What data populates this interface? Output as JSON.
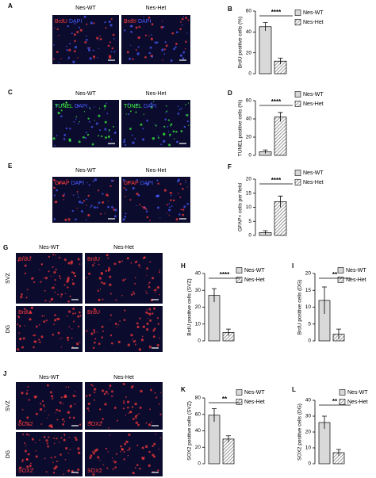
{
  "panels": [
    {
      "letter": "A",
      "columns": [
        "Nes-WT",
        "Nes-Het"
      ],
      "stains": [
        "BrdU",
        "DAPI"
      ],
      "stain_colors": [
        "#ff3b3b",
        "#4a5cff"
      ]
    },
    {
      "letter": "C",
      "columns": [
        "Nes-WT",
        "Nes-Het"
      ],
      "stains": [
        "TUNEL",
        "DAPI"
      ],
      "stain_colors": [
        "#3cff3c",
        "#4a5cff"
      ]
    },
    {
      "letter": "E",
      "columns": [
        "Nes-WT",
        "Nes-Het"
      ],
      "stains": [
        "GFAP",
        "DAPI"
      ],
      "stain_colors": [
        "#ff3b3b",
        "#4a5cff"
      ]
    },
    {
      "letter": "G",
      "columns": [
        "Nes-WT",
        "Nes-Het"
      ],
      "rows": [
        "SVZ",
        "DG"
      ],
      "stains": [
        "BrdU"
      ],
      "stain_colors": [
        "#ff3b3b"
      ]
    },
    {
      "letter": "J",
      "columns": [
        "Nes-WT",
        "Nes-Het"
      ],
      "rows": [
        "SVZ",
        "DG"
      ],
      "stains": [
        "SOX2"
      ],
      "stain_colors": [
        "#ff3b3b"
      ]
    }
  ],
  "chart_data": [
    {
      "type": "bar",
      "letter": "B",
      "ylabel": "BrdU positive cells (%)",
      "ylim": [
        0,
        60
      ],
      "yticks": [
        0,
        20,
        40,
        60
      ],
      "annotation": "****",
      "series": [
        {
          "name": "Nes-WT",
          "color": "#d9d9d9",
          "values": [
            45
          ],
          "errors": [
            4
          ]
        },
        {
          "name": "Nes-Het",
          "color": "#7f7f7f",
          "hatch": true,
          "values": [
            12
          ],
          "errors": [
            3
          ]
        }
      ]
    },
    {
      "type": "bar",
      "letter": "D",
      "ylabel": "TUNEL positive cells (%)",
      "ylim": [
        0,
        60
      ],
      "yticks": [
        0,
        20,
        40,
        60
      ],
      "annotation": "****",
      "series": [
        {
          "name": "Nes-WT",
          "color": "#d9d9d9",
          "values": [
            4
          ],
          "errors": [
            2
          ]
        },
        {
          "name": "Nes-Het",
          "color": "#7f7f7f",
          "hatch": true,
          "values": [
            42
          ],
          "errors": [
            5
          ]
        }
      ]
    },
    {
      "type": "bar",
      "letter": "F",
      "ylabel": "GFAP+ cells per field",
      "ylim": [
        0,
        20
      ],
      "yticks": [
        0,
        5,
        10,
        15,
        20
      ],
      "annotation": "****",
      "series": [
        {
          "name": "Nes-WT",
          "color": "#d9d9d9",
          "values": [
            1
          ],
          "errors": [
            0.7
          ]
        },
        {
          "name": "Nes-Het",
          "color": "#7f7f7f",
          "hatch": true,
          "values": [
            12
          ],
          "errors": [
            2
          ]
        }
      ]
    },
    {
      "type": "bar",
      "letter": "H",
      "ylabel": "BrdU positive cells (SVZ)",
      "ylim": [
        0,
        40
      ],
      "yticks": [
        0,
        10,
        20,
        30,
        40
      ],
      "annotation": "****",
      "series": [
        {
          "name": "Nes-WT",
          "color": "#d9d9d9",
          "values": [
            27
          ],
          "errors": [
            4
          ]
        },
        {
          "name": "Nes-Het",
          "color": "#7f7f7f",
          "hatch": true,
          "values": [
            5
          ],
          "errors": [
            2
          ]
        }
      ]
    },
    {
      "type": "bar",
      "letter": "I",
      "ylabel": "BrdU positive cells (DG)",
      "ylim": [
        0,
        20
      ],
      "yticks": [
        0,
        5,
        10,
        15,
        20
      ],
      "annotation": "**",
      "series": [
        {
          "name": "Nes-WT",
          "color": "#d9d9d9",
          "values": [
            12
          ],
          "errors": [
            4
          ]
        },
        {
          "name": "Nes-Het",
          "color": "#7f7f7f",
          "hatch": true,
          "values": [
            2
          ],
          "errors": [
            1.5
          ]
        }
      ]
    },
    {
      "type": "bar",
      "letter": "K",
      "ylabel": "SOX2 positive cells (SVZ)",
      "ylim": [
        0,
        80
      ],
      "yticks": [
        0,
        20,
        40,
        60,
        80
      ],
      "annotation": "**",
      "series": [
        {
          "name": "Nes-WT",
          "color": "#d9d9d9",
          "values": [
            59
          ],
          "errors": [
            8
          ]
        },
        {
          "name": "Nes-Het",
          "color": "#7f7f7f",
          "hatch": true,
          "values": [
            30
          ],
          "errors": [
            4
          ]
        }
      ]
    },
    {
      "type": "bar",
      "letter": "L",
      "ylabel": "SOX2 positive cells (DG)",
      "ylim": [
        0,
        40
      ],
      "yticks": [
        0,
        10,
        20,
        30,
        40
      ],
      "annotation": "**",
      "series": [
        {
          "name": "Nes-WT",
          "color": "#d9d9d9",
          "values": [
            26
          ],
          "errors": [
            4
          ]
        },
        {
          "name": "Nes-Het",
          "color": "#7f7f7f",
          "hatch": true,
          "values": [
            7
          ],
          "errors": [
            2
          ]
        }
      ]
    }
  ]
}
